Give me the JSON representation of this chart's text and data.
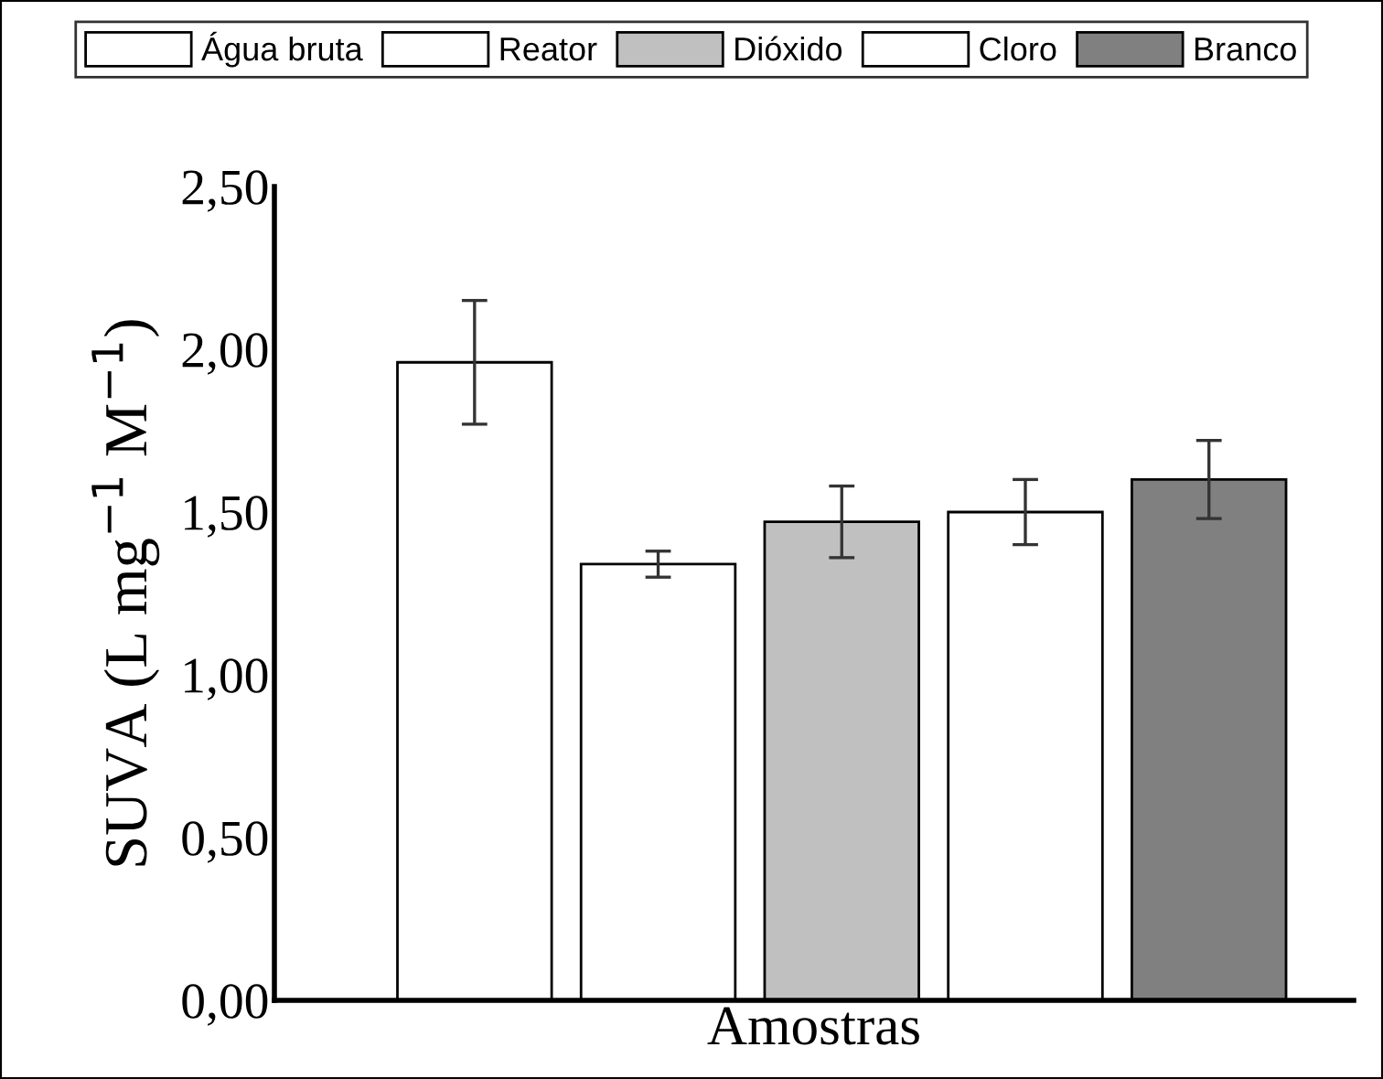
{
  "chart_data": {
    "type": "bar",
    "xlabel": "Amostras",
    "ylabel": "SUVA (L mg$^{−1}$ M$^{−1}$)",
    "categories": [
      null
    ],
    "series": [
      {
        "name": "Água bruta",
        "color": "#ffffff",
        "values": [
          1.96
        ],
        "errors": [
          0.19
        ]
      },
      {
        "name": "Reator",
        "color": "#ffffff",
        "values": [
          1.34
        ],
        "errors": [
          0.04
        ]
      },
      {
        "name": "Dióxido",
        "color": "#c0c0c0",
        "values": [
          1.47
        ],
        "errors": [
          0.11
        ]
      },
      {
        "name": "Cloro",
        "color": "#ffffff",
        "values": [
          1.5
        ],
        "errors": [
          0.1
        ]
      },
      {
        "name": "Branco",
        "color": "#808080",
        "values": [
          1.6
        ],
        "errors": [
          0.12
        ]
      }
    ],
    "ylim": [
      0,
      2.5
    ],
    "yticks": [
      {
        "value": 0,
        "label": "0,00"
      },
      {
        "value": 0.5,
        "label": "0,50"
      },
      {
        "value": 1,
        "label": "1,00"
      },
      {
        "value": 1.5,
        "label": "1,50"
      },
      {
        "value": 2,
        "label": "2,00"
      },
      {
        "value": 2.5,
        "label": "2,50"
      }
    ],
    "legend": "top",
    "grid": false
  }
}
